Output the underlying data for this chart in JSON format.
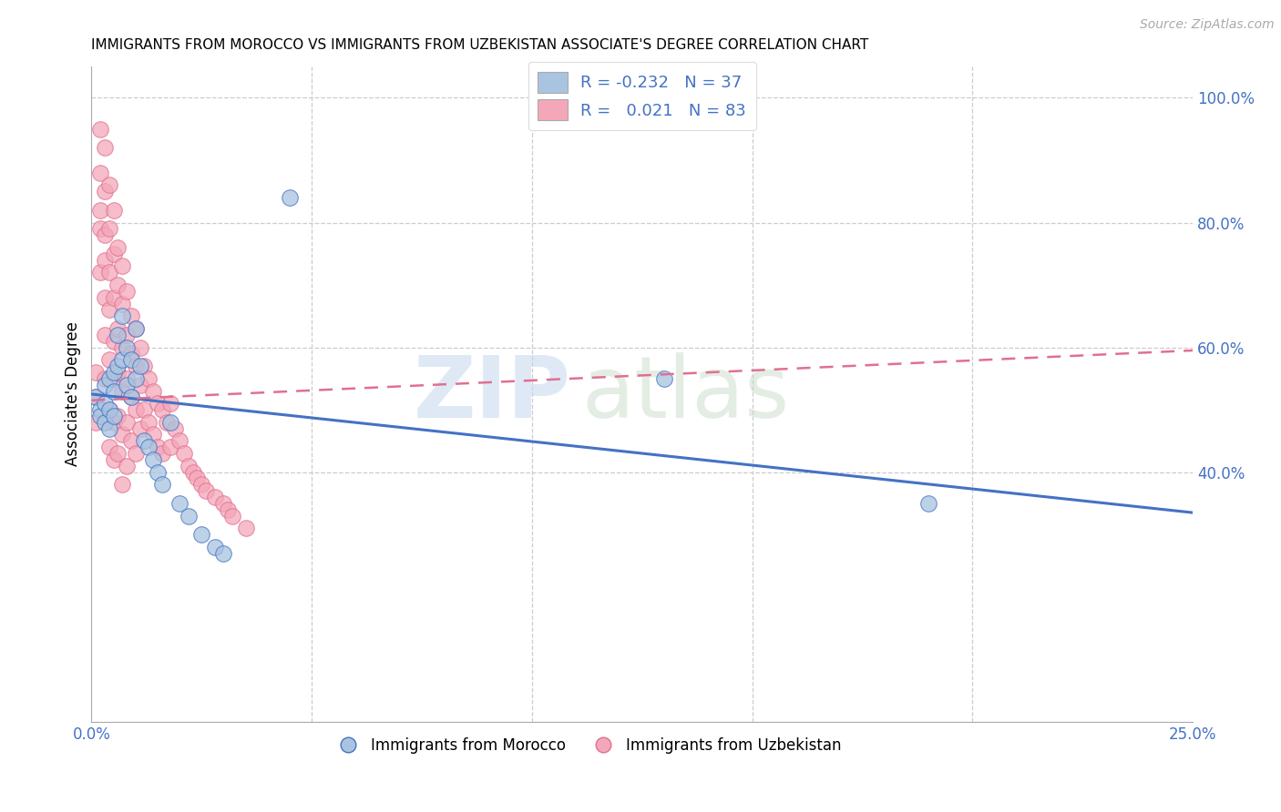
{
  "title": "IMMIGRANTS FROM MOROCCO VS IMMIGRANTS FROM UZBEKISTAN ASSOCIATE'S DEGREE CORRELATION CHART",
  "source": "Source: ZipAtlas.com",
  "ylabel": "Associate's Degree",
  "xlim": [
    0.0,
    0.25
  ],
  "ylim": [
    0.0,
    1.05
  ],
  "watermark_zip": "ZIP",
  "watermark_atlas": "atlas",
  "color_morocco": "#a8c4e0",
  "color_uzbekistan": "#f4a7b9",
  "color_morocco_line": "#4472C4",
  "color_uzbekistan_line": "#E07090",
  "morocco_line_y0": 0.525,
  "morocco_line_y1": 0.335,
  "uzbekistan_line_y0": 0.515,
  "uzbekistan_line_y1": 0.595,
  "morocco_scatter_x": [
    0.001,
    0.002,
    0.002,
    0.003,
    0.003,
    0.003,
    0.004,
    0.004,
    0.004,
    0.005,
    0.005,
    0.005,
    0.006,
    0.006,
    0.007,
    0.007,
    0.008,
    0.008,
    0.009,
    0.009,
    0.01,
    0.01,
    0.011,
    0.012,
    0.013,
    0.014,
    0.015,
    0.016,
    0.018,
    0.02,
    0.022,
    0.025,
    0.028,
    0.03,
    0.045,
    0.13,
    0.19
  ],
  "morocco_scatter_y": [
    0.52,
    0.5,
    0.49,
    0.54,
    0.51,
    0.48,
    0.55,
    0.5,
    0.47,
    0.56,
    0.53,
    0.49,
    0.62,
    0.57,
    0.65,
    0.58,
    0.6,
    0.54,
    0.58,
    0.52,
    0.63,
    0.55,
    0.57,
    0.45,
    0.44,
    0.42,
    0.4,
    0.38,
    0.48,
    0.35,
    0.33,
    0.3,
    0.28,
    0.27,
    0.84,
    0.55,
    0.35
  ],
  "uzbekistan_scatter_x": [
    0.001,
    0.001,
    0.001,
    0.002,
    0.002,
    0.002,
    0.002,
    0.002,
    0.003,
    0.003,
    0.003,
    0.003,
    0.003,
    0.003,
    0.003,
    0.004,
    0.004,
    0.004,
    0.004,
    0.004,
    0.004,
    0.004,
    0.005,
    0.005,
    0.005,
    0.005,
    0.005,
    0.005,
    0.005,
    0.006,
    0.006,
    0.006,
    0.006,
    0.006,
    0.006,
    0.007,
    0.007,
    0.007,
    0.007,
    0.007,
    0.007,
    0.008,
    0.008,
    0.008,
    0.008,
    0.008,
    0.009,
    0.009,
    0.009,
    0.009,
    0.01,
    0.01,
    0.01,
    0.01,
    0.011,
    0.011,
    0.011,
    0.012,
    0.012,
    0.013,
    0.013,
    0.014,
    0.014,
    0.015,
    0.015,
    0.016,
    0.016,
    0.017,
    0.018,
    0.018,
    0.019,
    0.02,
    0.021,
    0.022,
    0.023,
    0.024,
    0.025,
    0.026,
    0.028,
    0.03,
    0.031,
    0.032,
    0.035
  ],
  "uzbekistan_scatter_y": [
    0.52,
    0.48,
    0.56,
    0.95,
    0.88,
    0.82,
    0.79,
    0.72,
    0.92,
    0.85,
    0.78,
    0.74,
    0.68,
    0.62,
    0.55,
    0.86,
    0.79,
    0.72,
    0.66,
    0.58,
    0.5,
    0.44,
    0.82,
    0.75,
    0.68,
    0.61,
    0.55,
    0.48,
    0.42,
    0.76,
    0.7,
    0.63,
    0.56,
    0.49,
    0.43,
    0.73,
    0.67,
    0.6,
    0.53,
    0.46,
    0.38,
    0.69,
    0.62,
    0.55,
    0.48,
    0.41,
    0.65,
    0.59,
    0.52,
    0.45,
    0.63,
    0.57,
    0.5,
    0.43,
    0.6,
    0.54,
    0.47,
    0.57,
    0.5,
    0.55,
    0.48,
    0.53,
    0.46,
    0.51,
    0.44,
    0.5,
    0.43,
    0.48,
    0.51,
    0.44,
    0.47,
    0.45,
    0.43,
    0.41,
    0.4,
    0.39,
    0.38,
    0.37,
    0.36,
    0.35,
    0.34,
    0.33,
    0.31
  ]
}
